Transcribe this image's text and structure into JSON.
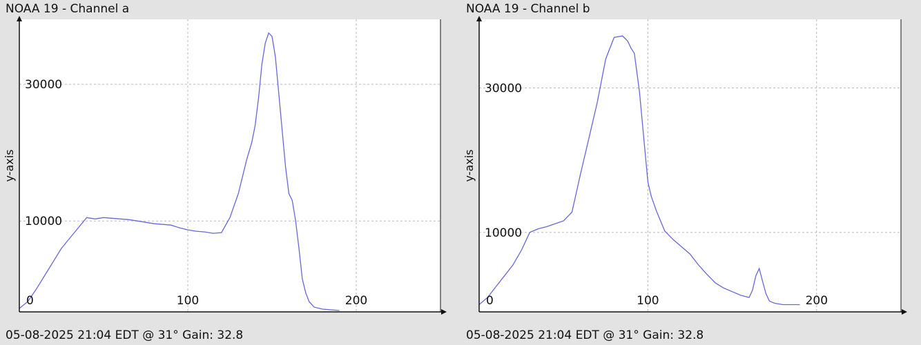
{
  "chart_data": [
    {
      "type": "line",
      "title": "NOAA 19 - Channel a",
      "footer": "05-08-2025 21:04 EDT @ 31° Gain: 32.8",
      "xlabel": "",
      "ylabel": "y-axis",
      "xlim": [
        0,
        250
      ],
      "ylim": [
        -3300,
        39500
      ],
      "xticks": [
        0,
        100,
        200
      ],
      "yticks": [
        10000,
        30000
      ],
      "grid": true,
      "line_color": "#6666dd",
      "series": [
        {
          "x": [
            0,
            5,
            10,
            15,
            20,
            25,
            30,
            35,
            40,
            45,
            50,
            55,
            60,
            65,
            70,
            75,
            80,
            85,
            90,
            95,
            100,
            105,
            110,
            115,
            120,
            125,
            130,
            135,
            138,
            140,
            142,
            144,
            146,
            148,
            150,
            152,
            155,
            158,
            160,
            162,
            164,
            166,
            168,
            170,
            172,
            175,
            180,
            185,
            190
          ],
          "y": [
            -2800,
            -1800,
            0,
            2000,
            4000,
            6000,
            7500,
            9000,
            10500,
            10300,
            10500,
            10400,
            10300,
            10200,
            10000,
            9800,
            9600,
            9500,
            9400,
            9000,
            8700,
            8500,
            8400,
            8200,
            8300,
            10500,
            14000,
            19000,
            21500,
            24000,
            28000,
            33000,
            36000,
            37500,
            37000,
            34000,
            26000,
            18000,
            14000,
            13000,
            10000,
            6000,
            1500,
            -500,
            -1800,
            -2600,
            -2900,
            -3000,
            -3100
          ]
        }
      ]
    },
    {
      "type": "line",
      "title": "NOAA 19 - Channel b",
      "footer": "05-08-2025 21:04 EDT @ 31° Gain: 32.8",
      "xlabel": "",
      "ylabel": "y-axis",
      "xlim": [
        0,
        250
      ],
      "ylim": [
        -1000,
        39500
      ],
      "xticks": [
        0,
        100,
        200
      ],
      "yticks": [
        10000,
        30000
      ],
      "grid": true,
      "line_color": "#6666dd",
      "series": [
        {
          "x": [
            0,
            5,
            10,
            15,
            20,
            25,
            30,
            35,
            40,
            45,
            50,
            55,
            60,
            65,
            70,
            75,
            80,
            85,
            88,
            90,
            92,
            95,
            98,
            100,
            102,
            105,
            110,
            115,
            120,
            125,
            130,
            135,
            140,
            145,
            150,
            155,
            160,
            162,
            164,
            166,
            168,
            170,
            172,
            175,
            180,
            185,
            190
          ],
          "y": [
            0,
            1000,
            2500,
            4000,
            5500,
            7500,
            10000,
            10500,
            10800,
            11200,
            11600,
            12800,
            18000,
            23000,
            28000,
            34000,
            37000,
            37200,
            36500,
            35500,
            34800,
            29500,
            22000,
            17000,
            15000,
            13000,
            10200,
            9000,
            8000,
            7000,
            5500,
            4200,
            3000,
            2300,
            1800,
            1300,
            1000,
            2000,
            4000,
            5000,
            3200,
            1500,
            500,
            200,
            0,
            0,
            0
          ]
        }
      ]
    }
  ]
}
